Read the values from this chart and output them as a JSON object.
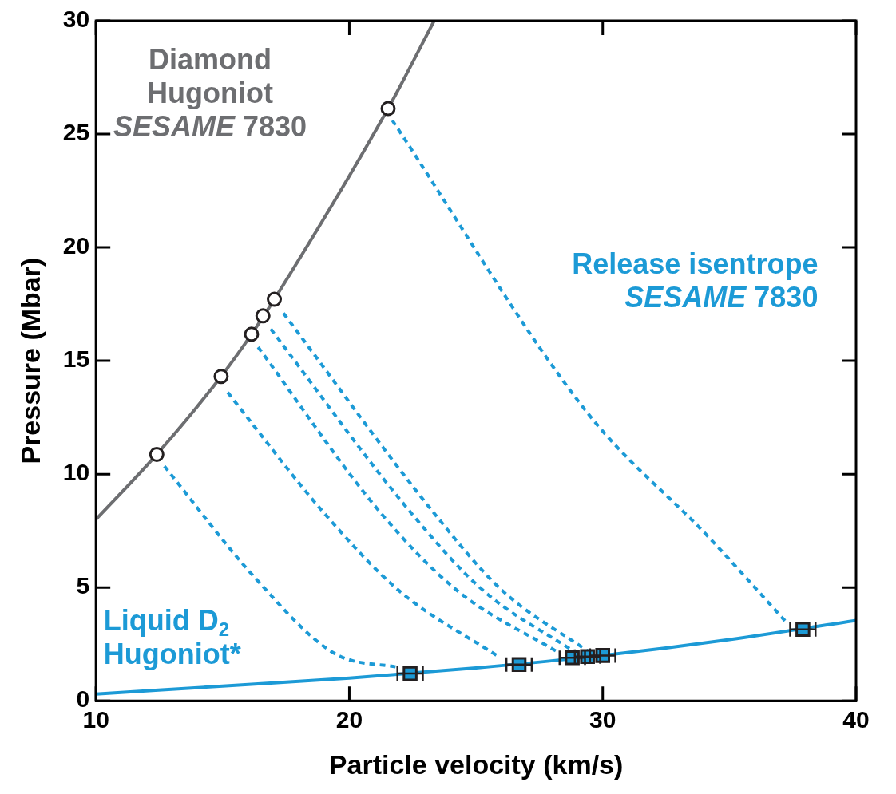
{
  "chart_data": {
    "type": "line",
    "xlabel": "Particle velocity (km/s)",
    "ylabel": "Pressure (Mbar)",
    "xlim": [
      10,
      40
    ],
    "xticks": [
      10,
      20,
      30,
      40
    ],
    "ylim": [
      0,
      30
    ],
    "yticks": [
      0,
      5,
      10,
      15,
      20,
      25,
      30
    ],
    "grid": false,
    "legend": false,
    "series": [
      {
        "name": "Diamond\nHugoniot\nSESAME 7830",
        "color": "#6d6e71",
        "marker": "none",
        "line_style": "solid",
        "x": [
          10,
          12.4,
          14.94,
          16.14,
          17.04,
          21.53,
          23.35
        ],
        "values": [
          8,
          10.87,
          14.31,
          16.17,
          17.71,
          26.13,
          30
        ]
      },
      {
        "color": "#1c9ad6",
        "marker": "none",
        "line_style": "dashed",
        "x": [
          12.7,
          16.3,
          19.4,
          22.0
        ],
        "values": [
          10.35,
          5.4,
          2.1,
          1.46
        ]
      },
      {
        "color": "#1c9ad6",
        "marker": "none",
        "line_style": "dashed",
        "x": [
          15.2,
          18.96,
          21.95,
          25.9
        ],
        "values": [
          13.6,
          8.34,
          4.87,
          1.94
        ]
      },
      {
        "color": "#1c9ad6",
        "marker": "none",
        "line_style": "dashed",
        "x": [
          16.4,
          21.2,
          24.25,
          28.3
        ],
        "values": [
          15.6,
          8.34,
          4.87,
          2.1
        ]
      },
      {
        "color": "#1c9ad6",
        "marker": "none",
        "line_style": "dashed",
        "x": [
          16.9,
          22.4,
          25.28,
          28.9
        ],
        "values": [
          16.4,
          8.34,
          4.87,
          2.15
        ]
      },
      {
        "color": "#1c9ad6",
        "marker": "none",
        "line_style": "dashed",
        "x": [
          17.4,
          23.3,
          26.03,
          29.4
        ],
        "values": [
          17.1,
          8.34,
          4.87,
          2.2
        ]
      },
      {
        "name": "Release isentrope\nSESAME 7830",
        "color": "#1c9ad6",
        "marker": "none",
        "line_style": "dashed",
        "x": [
          21.7,
          29.4,
          34.2,
          37.3
        ],
        "values": [
          25.6,
          12.7,
          7.2,
          3.4
        ]
      },
      {
        "name": "Liquid D$_{2}$\nHugoniot*",
        "color": "#1c9ad6",
        "marker": "none",
        "line_style": "solid",
        "x": [
          10,
          15,
          20,
          25,
          30,
          35,
          40
        ],
        "values": [
          0.3,
          0.65,
          1.0,
          1.45,
          2.0,
          2.7,
          3.55
        ]
      },
      {
        "type": "scatter",
        "color": "#ffffff",
        "marker": "circle",
        "x": [
          12.4,
          14.94,
          16.14,
          16.59,
          17.04,
          21.53
        ],
        "values": [
          10.87,
          14.31,
          16.17,
          16.98,
          17.71,
          26.13
        ]
      },
      {
        "type": "scatter",
        "color": "#1c9ad6",
        "marker": "square",
        "x": [
          22.4,
          26.7,
          28.8,
          29.4,
          30.0,
          37.9
        ],
        "values": [
          1.2,
          1.6,
          1.9,
          1.95,
          2.0,
          3.15
        ],
        "xerrors": [
          0.5,
          0.5,
          0.5,
          0.5,
          0.5,
          0.5
        ]
      }
    ]
  }
}
